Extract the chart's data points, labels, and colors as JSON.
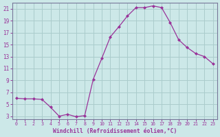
{
  "x": [
    0,
    1,
    2,
    3,
    4,
    5,
    6,
    7,
    8,
    9,
    10,
    11,
    12,
    13,
    14,
    15,
    16,
    17,
    18,
    19,
    20,
    21,
    22,
    23
  ],
  "y": [
    6.0,
    5.9,
    5.9,
    5.8,
    4.5,
    3.0,
    3.3,
    2.9,
    3.1,
    9.2,
    12.7,
    16.3,
    18.0,
    19.8,
    21.2,
    21.2,
    21.5,
    21.2,
    18.7,
    15.8,
    14.5,
    13.5,
    13.0,
    11.8
  ],
  "line_color": "#993399",
  "marker": "D",
  "marker_size": 2.0,
  "bg_color": "#cce8e8",
  "grid_color": "#aacccc",
  "xlabel": "Windchill (Refroidissement éolien,°C)",
  "xlim": [
    -0.5,
    23.5
  ],
  "ylim": [
    2.5,
    22.0
  ],
  "yticks": [
    3,
    5,
    7,
    9,
    11,
    13,
    15,
    17,
    19,
    21
  ],
  "xticks": [
    0,
    1,
    2,
    3,
    4,
    5,
    6,
    7,
    8,
    9,
    10,
    11,
    12,
    13,
    14,
    15,
    16,
    17,
    18,
    19,
    20,
    21,
    22,
    23
  ],
  "spine_color": "#777799",
  "tick_color": "#993399",
  "label_color": "#993399",
  "xlabel_fontsize": 5.8,
  "ytick_fontsize": 5.5,
  "xtick_fontsize": 4.8
}
